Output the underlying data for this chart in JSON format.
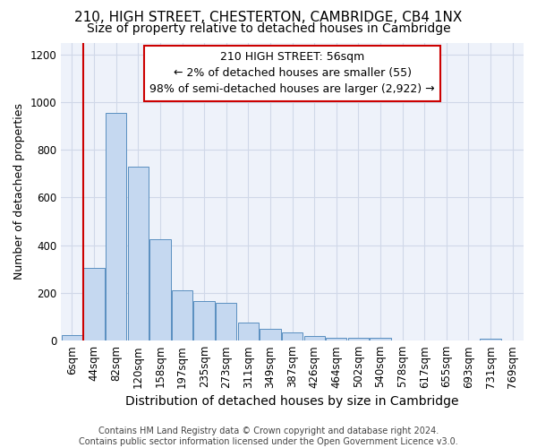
{
  "title": "210, HIGH STREET, CHESTERTON, CAMBRIDGE, CB4 1NX",
  "subtitle": "Size of property relative to detached houses in Cambridge",
  "xlabel": "Distribution of detached houses by size in Cambridge",
  "ylabel": "Number of detached properties",
  "footer_line1": "Contains HM Land Registry data © Crown copyright and database right 2024.",
  "footer_line2": "Contains public sector information licensed under the Open Government Licence v3.0.",
  "annotation_title": "210 HIGH STREET: 56sqm",
  "annotation_line1": "← 2% of detached houses are smaller (55)",
  "annotation_line2": "98% of semi-detached houses are larger (2,922) →",
  "bar_color": "#c5d8f0",
  "bar_edge_color": "#5a8fc0",
  "red_line_color": "#cc0000",
  "annotation_box_edge_color": "#cc0000",
  "grid_color": "#d0d8e8",
  "bg_color": "#eef2fa",
  "fig_bg_color": "#ffffff",
  "categories": [
    "6sqm",
    "44sqm",
    "82sqm",
    "120sqm",
    "158sqm",
    "197sqm",
    "235sqm",
    "273sqm",
    "311sqm",
    "349sqm",
    "387sqm",
    "426sqm",
    "464sqm",
    "502sqm",
    "540sqm",
    "578sqm",
    "617sqm",
    "655sqm",
    "693sqm",
    "731sqm",
    "769sqm"
  ],
  "values": [
    25,
    305,
    955,
    730,
    425,
    210,
    165,
    160,
    75,
    50,
    35,
    18,
    13,
    13,
    13,
    0,
    0,
    0,
    0,
    10,
    0
  ],
  "ylim": [
    0,
    1250
  ],
  "yticks": [
    0,
    200,
    400,
    600,
    800,
    1000,
    1200
  ],
  "title_fontsize": 11,
  "subtitle_fontsize": 10,
  "ylabel_fontsize": 9,
  "xlabel_fontsize": 10,
  "tick_fontsize": 8.5,
  "annotation_fontsize": 9,
  "footer_fontsize": 7
}
